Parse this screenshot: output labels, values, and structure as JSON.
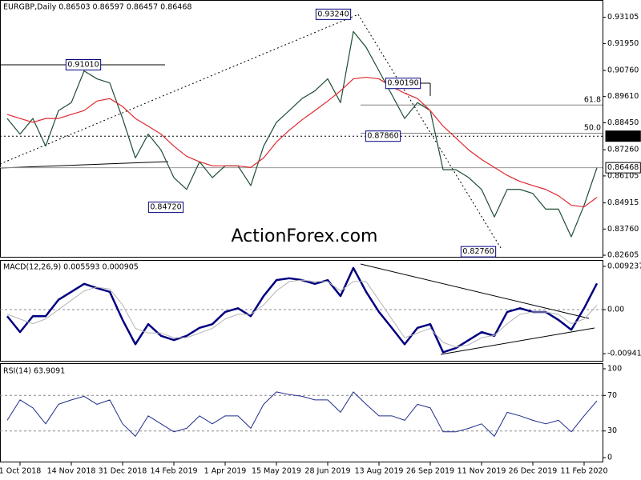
{
  "chart_data": [
    {
      "type": "line",
      "title": "EURGBP,Daily  0.86503 0.86597 0.86457 0.86468",
      "watermark": "ActionForex.com",
      "ylim": [
        0.825,
        0.9387
      ],
      "yticks": [
        0.93105,
        {
          "value": 0.9195,
          "label": "0.91950"
        },
        {
          "value": 0.9076,
          "label": "0.90760"
        },
        {
          "value": 0.8961,
          "label": "0.89610"
        },
        {
          "value": 0.8845,
          "label": "0.88450"
        },
        {
          "value": 0.8726,
          "label": "0.87260"
        },
        0.86105,
        0.84915,
        {
          "value": 0.8376,
          "label": "0.83760"
        },
        0.82605
      ],
      "series": [
        {
          "color": "#1d4d34",
          "values": [
            0.8864,
            0.8795,
            0.8864,
            0.8742,
            0.8899,
            0.8934,
            0.9074,
            0.9039,
            0.9021,
            0.8864,
            0.869,
            0.8795,
            0.8725,
            0.8603,
            0.8551,
            0.8673,
            0.8603,
            0.8655,
            0.8655,
            0.8568,
            0.8742,
            0.8847,
            0.8899,
            0.8952,
            0.8986,
            0.9039,
            0.8934,
            0.9248,
            0.9178,
            0.9074,
            0.8969,
            0.8864,
            0.8934,
            0.8899,
            0.8638,
            0.8638,
            0.8603,
            0.8551,
            0.8429,
            0.8551,
            0.8551,
            0.8533,
            0.8464,
            0.8464,
            0.8342,
            0.8481,
            0.86468
          ]
        },
        {
          "color": "#e0282e",
          "values": [
            0.8882,
            0.8864,
            0.8847,
            0.8864,
            0.8864,
            0.8882,
            0.8899,
            0.8941,
            0.8952,
            0.8917,
            0.8864,
            0.883,
            0.8795,
            0.8742,
            0.8697,
            0.8673,
            0.8655,
            0.8655,
            0.8655,
            0.8648,
            0.869,
            0.876,
            0.8812,
            0.8858,
            0.8899,
            0.8941,
            0.8986,
            0.9039,
            0.9046,
            0.9039,
            0.9004,
            0.8976,
            0.8952,
            0.8899,
            0.883,
            0.8778,
            0.8725,
            0.8683,
            0.8648,
            0.8613,
            0.8586,
            0.8568,
            0.8551,
            0.8523,
            0.8481,
            0.8474,
            0.8516
          ]
        }
      ],
      "annotations": [
        {
          "value": 0.9324,
          "label": "0.93240"
        },
        {
          "value": 0.9101,
          "label": "0.91010"
        },
        {
          "value": 0.8472,
          "label": "0.84720"
        },
        {
          "value": 0.9019,
          "label": "0.90190"
        },
        {
          "value": 0.8786,
          "label": "0.87860"
        },
        {
          "value": 0.8276,
          "label": "0.82760"
        }
      ],
      "fib_levels": [
        {
          "value": 0.8924,
          "label": "61.8"
        },
        {
          "value": 0.88,
          "label": "50.0"
        }
      ],
      "tags": [
        {
          "value": 0.8786,
          "label": "0.87860"
        },
        {
          "value": 0.86468,
          "label": "0.86468"
        }
      ]
    },
    {
      "type": "line",
      "title": "MACD(12,26,9) 0.005593 0.000905",
      "ylim": [
        -0.0111,
        0.0106
      ],
      "yticks": [
        0.009237,
        {
          "value": 0,
          "label": "0.00"
        },
        -0.009413
      ],
      "levels": [
        0
      ],
      "series": [
        {
          "color": "#000080",
          "values": [
            -0.0014,
            -0.0048,
            -0.0014,
            -0.0014,
            0.0021,
            0.0038,
            0.0055,
            0.0046,
            0.0038,
            -0.0022,
            -0.0074,
            -0.0031,
            -0.0056,
            -0.0065,
            -0.0056,
            -0.0039,
            -0.0031,
            -0.0005,
            0.0003,
            -0.0014,
            0.0029,
            0.0063,
            0.0067,
            0.0063,
            0.0055,
            0.0063,
            0.0029,
            0.0089,
            0.0038,
            -0.0005,
            -0.0039,
            -0.0074,
            -0.0039,
            -0.0031,
            -0.0091,
            -0.0082,
            -0.0065,
            -0.0048,
            -0.0056,
            -0.0005,
            0.0003,
            -0.0005,
            -0.0005,
            -0.0022,
            -0.0043,
            0.0003,
            0.005593
          ]
        },
        {
          "color": "#b4b4b4",
          "values": [
            -0.001,
            -0.002,
            -0.003,
            -0.002,
            0.0,
            0.002,
            0.004,
            0.0048,
            0.0044,
            0.001,
            -0.004,
            -0.005,
            -0.005,
            -0.006,
            -0.006,
            -0.005,
            -0.004,
            -0.002,
            -0.001,
            -0.001,
            0.001,
            0.004,
            0.006,
            0.0063,
            0.006,
            0.006,
            0.004,
            0.006,
            0.006,
            0.002,
            -0.002,
            -0.006,
            -0.005,
            -0.004,
            -0.007,
            -0.008,
            -0.0075,
            -0.006,
            -0.0055,
            -0.003,
            -0.001,
            -0.0005,
            -0.0005,
            -0.001,
            -0.003,
            -0.002,
            0.000905
          ]
        }
      ]
    },
    {
      "type": "line",
      "title": "RSI(14) 63.9091",
      "ylim": [
        -5.4,
        105.4
      ],
      "yticks": [
        100,
        70,
        30,
        0
      ],
      "levels": [
        70,
        30
      ],
      "categories": [
        null,
        "1 Oct 2018",
        null,
        null,
        null,
        "14 Nov 2018",
        null,
        null,
        null,
        "31 Dec 2018",
        null,
        null,
        null,
        "14 Feb 2019",
        null,
        null,
        null,
        "1 Apr 2019",
        null,
        null,
        null,
        "15 May 2019",
        null,
        null,
        null,
        "28 Jun 2019",
        null,
        null,
        null,
        "13 Aug 2019",
        null,
        null,
        null,
        "26 Sep 2019",
        null,
        null,
        null,
        "11 Nov 2019",
        null,
        null,
        null,
        "26 Dec 2019",
        null,
        null,
        null,
        "11 Feb 2020",
        null
      ],
      "series": [
        {
          "color": "#1f2d8a",
          "values": [
            42,
            65,
            56,
            38,
            60,
            65,
            69,
            60,
            65,
            38,
            24,
            47,
            38,
            29,
            33,
            47,
            38,
            47,
            47,
            33,
            60,
            74,
            71,
            69,
            65,
            65,
            51,
            74,
            60,
            47,
            47,
            42,
            60,
            56,
            29,
            29,
            33,
            38,
            24,
            51,
            47,
            42,
            38,
            42,
            29,
            47,
            63.9091
          ]
        }
      ]
    }
  ]
}
